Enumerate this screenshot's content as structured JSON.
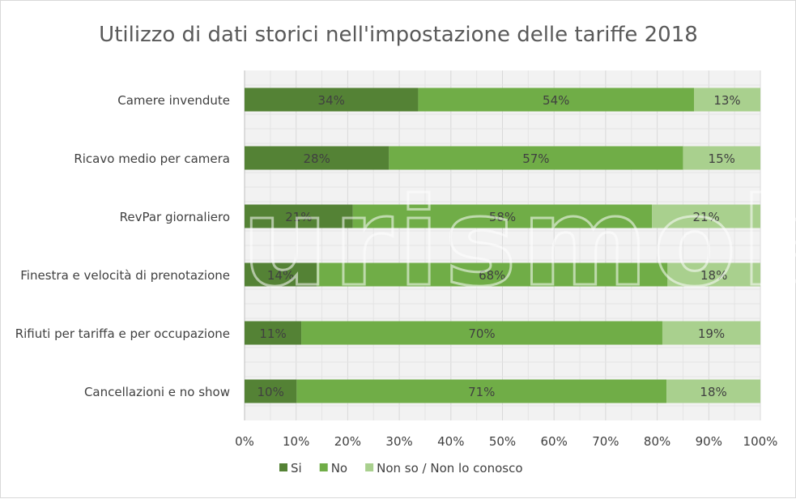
{
  "chart_data": {
    "type": "bar",
    "orientation": "horizontal",
    "stacked": "percent",
    "title": "Utilizzo di dati storici nell'impostazione delle tariffe 2018",
    "categories": [
      "Camere invendute",
      "Ricavo medio per camera",
      "RevPar giornaliero",
      "Finestra e velocità di prenotazione",
      "Rifiuti per tariffa e per occupazione",
      "Cancellazioni e no show"
    ],
    "series": [
      {
        "name": "Si",
        "color": "#548235",
        "values": [
          34,
          28,
          21,
          14,
          11,
          10
        ],
        "labels": [
          "34%",
          "28%",
          "21%",
          "14%",
          "11%",
          "10%"
        ]
      },
      {
        "name": "No",
        "color": "#70ad47",
        "values": [
          54,
          57,
          58,
          68,
          70,
          71
        ],
        "labels": [
          "54%",
          "57%",
          "58%",
          "68%",
          "70%",
          "71%"
        ]
      },
      {
        "name": "Non so / Non lo conosco",
        "color": "#a9d08e",
        "values": [
          13,
          15,
          21,
          18,
          19,
          18
        ],
        "labels": [
          "13%",
          "15%",
          "21%",
          "18%",
          "19%",
          "18%"
        ]
      }
    ],
    "xlim": [
      0,
      100
    ],
    "xticks": [
      "0%",
      "10%",
      "20%",
      "30%",
      "40%",
      "50%",
      "60%",
      "70%",
      "80%",
      "90%",
      "100%"
    ],
    "grid": true,
    "legend_position": "bottom",
    "watermark": "turismok"
  }
}
